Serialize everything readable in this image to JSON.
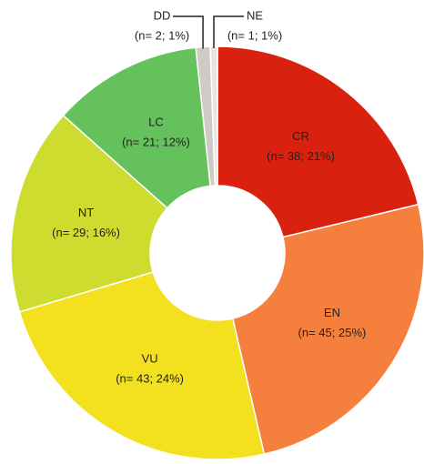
{
  "chart_data": {
    "type": "pie",
    "categories": [
      "CR",
      "EN",
      "VU",
      "NT",
      "LC",
      "DD",
      "NE"
    ],
    "values": [
      38,
      45,
      43,
      29,
      21,
      2,
      1
    ],
    "value_labels": [
      "(n= 38; 21%)",
      "(n= 45; 25%)",
      "(n= 43; 24%)",
      "(n= 29; 16%)",
      "(n= 21; 12%)",
      "(n= 2; 1%)",
      "(n= 1; 1%)"
    ],
    "colors": [
      "#d8220f",
      "#f5803d",
      "#f3e01f",
      "#cddc2f",
      "#65c15b",
      "#cfcac3",
      "#e8e5e0"
    ]
  }
}
